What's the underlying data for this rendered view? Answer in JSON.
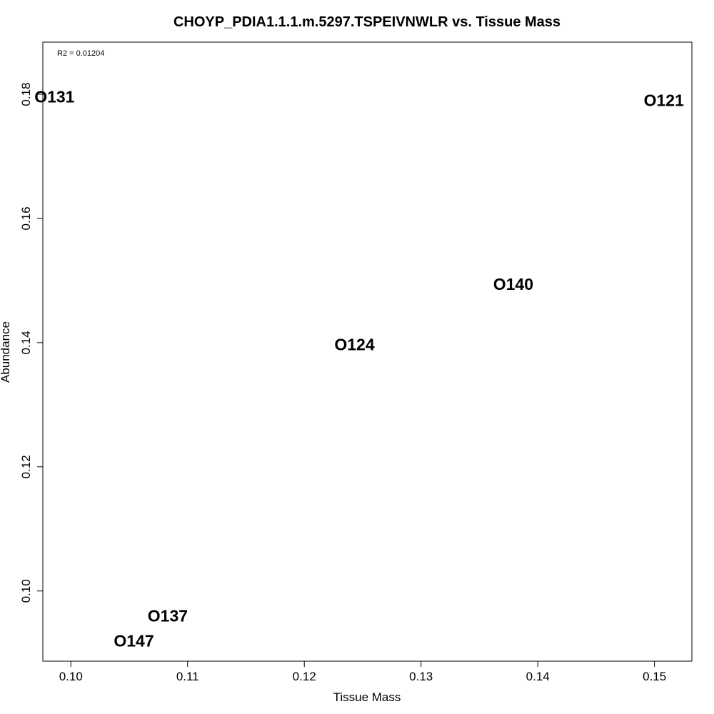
{
  "chart_data": {
    "type": "scatter",
    "title": "CHOYP_PDIA1.1.1.m.5297.TSPEIVNWLR vs. Tissue Mass",
    "xlabel": "Tissue Mass",
    "ylabel": "Abundance",
    "annotation": "R2 = 0.01204",
    "xlim": [
      0.0976,
      0.1532
    ],
    "ylim": [
      0.0887,
      0.1884
    ],
    "xticks": [
      "0.10",
      "0.11",
      "0.12",
      "0.13",
      "0.14",
      "0.15"
    ],
    "xtick_values": [
      0.1,
      0.11,
      0.12,
      0.13,
      0.14,
      0.15
    ],
    "yticks": [
      "0.10",
      "0.12",
      "0.14",
      "0.16",
      "0.18"
    ],
    "ytick_values": [
      0.1,
      0.12,
      0.14,
      0.16,
      0.18
    ],
    "grid": false,
    "points": [
      {
        "label": "O131",
        "x": 0.0986,
        "y": 0.1796
      },
      {
        "label": "O121",
        "x": 0.1508,
        "y": 0.179
      },
      {
        "label": "O140",
        "x": 0.1379,
        "y": 0.1494
      },
      {
        "label": "O124",
        "x": 0.1243,
        "y": 0.1397
      },
      {
        "label": "O137",
        "x": 0.1083,
        "y": 0.096
      },
      {
        "label": "O147",
        "x": 0.1054,
        "y": 0.092
      }
    ]
  }
}
